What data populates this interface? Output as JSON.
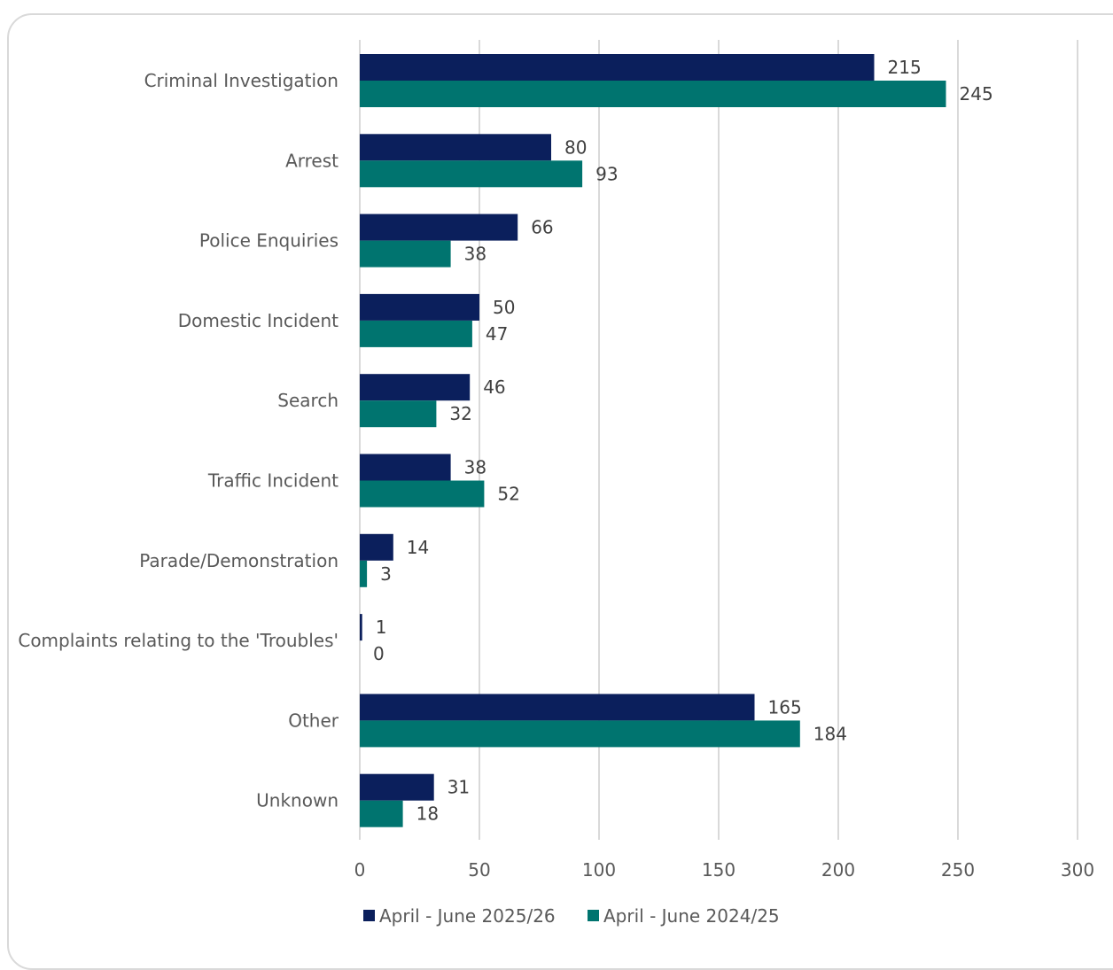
{
  "chart_data": {
    "type": "bar",
    "orientation": "horizontal",
    "categories": [
      "Criminal Investigation",
      "Arrest",
      "Police Enquiries",
      "Domestic Incident",
      "Search",
      "Traffic Incident",
      "Parade/Demonstration",
      "Complaints relating to the 'Troubles'",
      "Other",
      "Unknown"
    ],
    "series": [
      {
        "name": "April - June 2025/26",
        "color": "#0b1f5c",
        "values": [
          215,
          80,
          66,
          50,
          46,
          38,
          14,
          1,
          165,
          31
        ]
      },
      {
        "name": "April - June 2024/25",
        "color": "#00746f",
        "values": [
          245,
          93,
          38,
          47,
          32,
          52,
          3,
          0,
          184,
          18
        ]
      }
    ],
    "xlim": [
      0,
      300
    ],
    "ticks": [
      "0",
      "50",
      "100",
      "150",
      "200",
      "250",
      "300"
    ],
    "grid": true,
    "legend_position": "bottom"
  }
}
